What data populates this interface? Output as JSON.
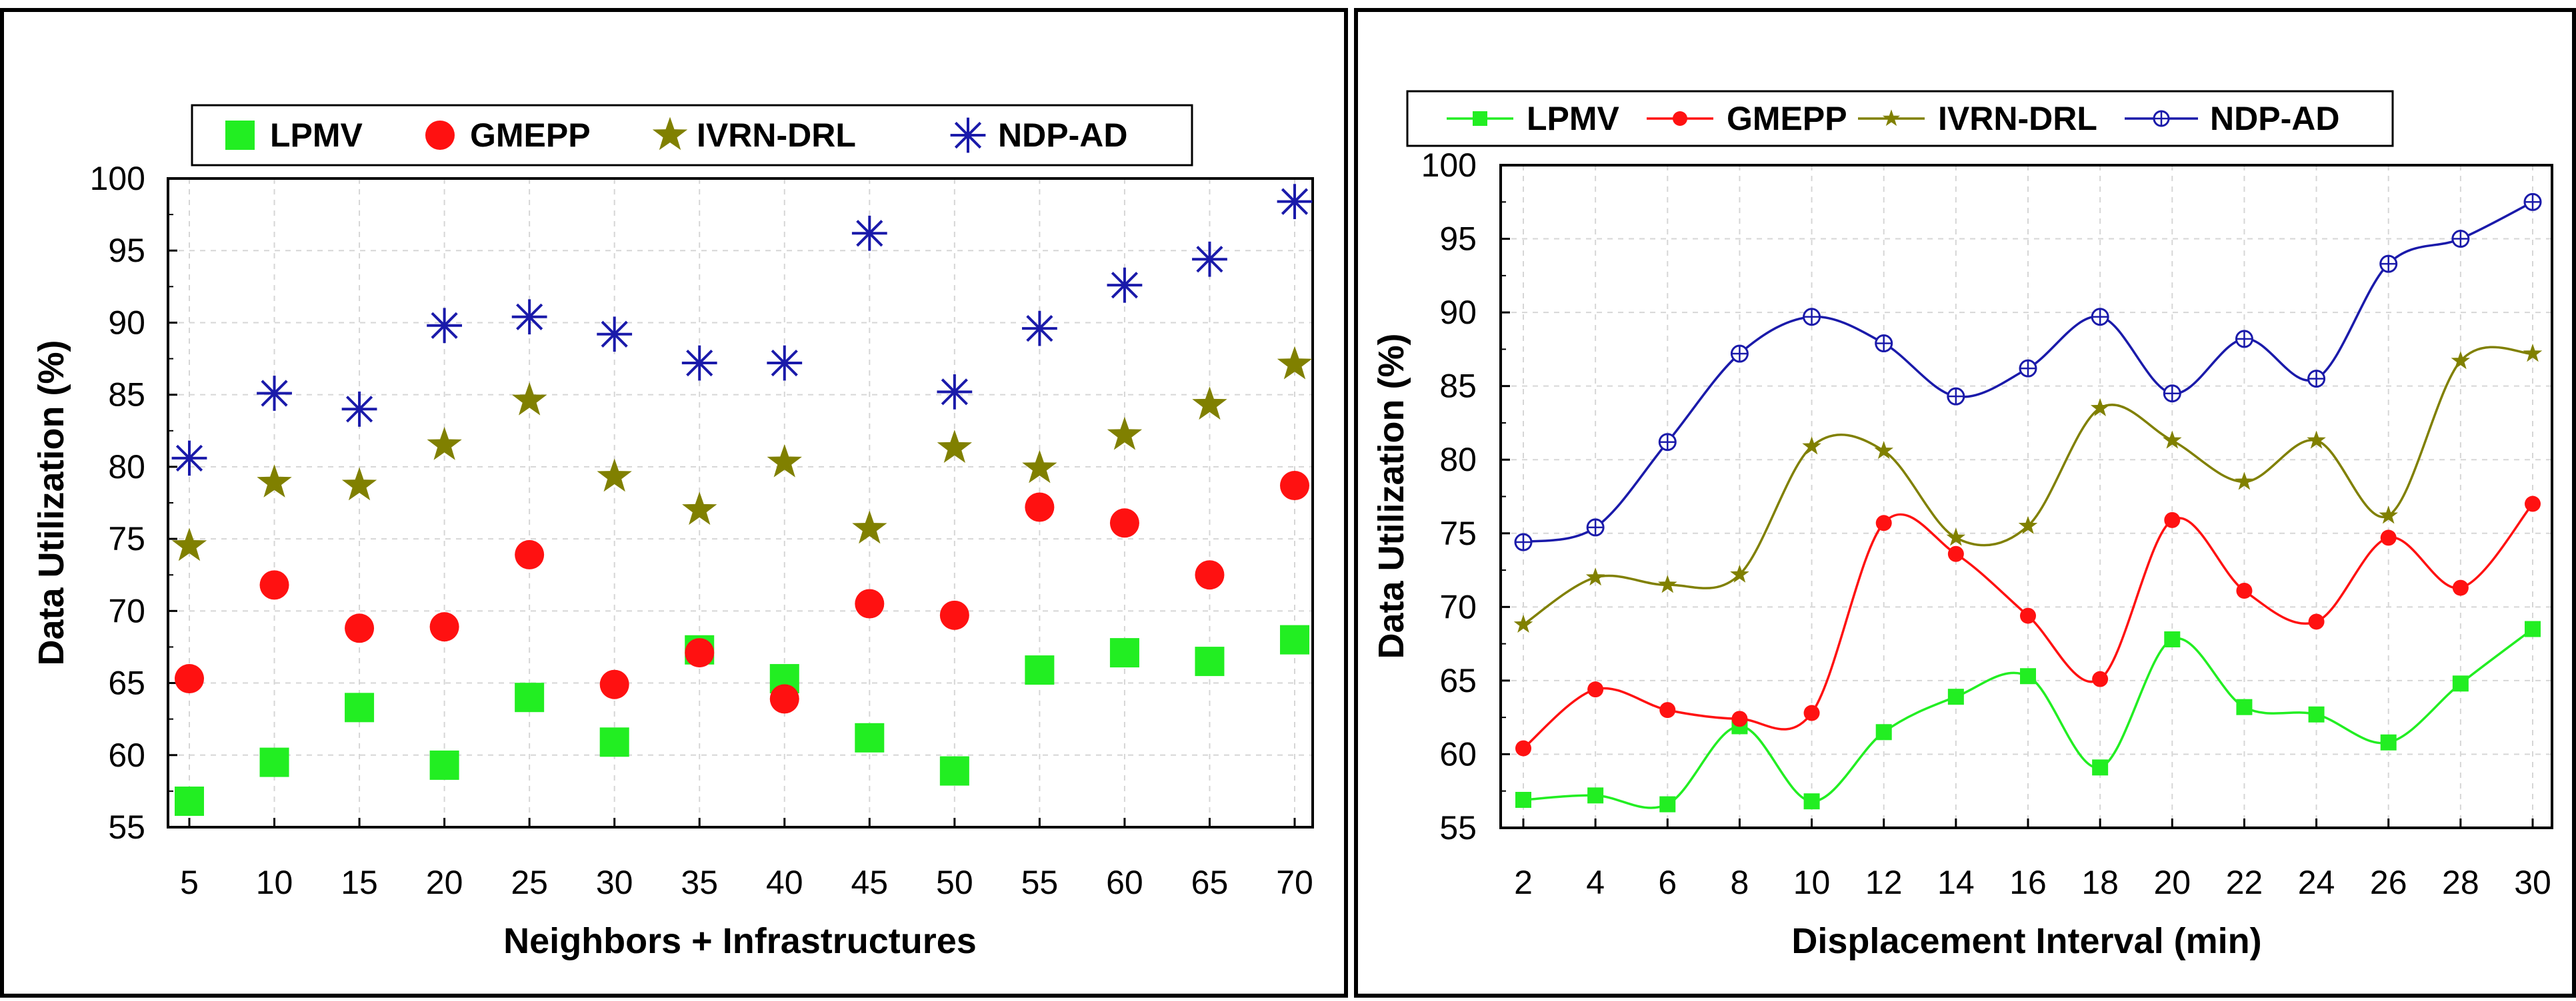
{
  "colors": {
    "LPMV": "#22ee22",
    "GMEPP": "#ff1111",
    "IVRN-DRL": "#808000",
    "NDP-AD": "#1a1aaa"
  },
  "chart_data": [
    {
      "type": "scatter",
      "xlabel": "Neighbors + Infrastructures",
      "ylabel": "Data Utilization (%)",
      "x": [
        5,
        10,
        15,
        20,
        25,
        30,
        35,
        40,
        45,
        50,
        55,
        60,
        65,
        70
      ],
      "xticks": [
        "5",
        "10",
        "15",
        "20",
        "25",
        "30",
        "35",
        "40",
        "45",
        "50",
        "55",
        "60",
        "65",
        "70"
      ],
      "yticks": [
        "55",
        "60",
        "65",
        "70",
        "75",
        "80",
        "85",
        "90",
        "95",
        "100"
      ],
      "ylim": [
        55,
        100
      ],
      "legend": [
        "LPMV",
        "GMEPP",
        "IVRN-DRL",
        "NDP-AD"
      ],
      "series": [
        {
          "name": "LPMV",
          "marker": "square",
          "values": [
            56.8,
            59.5,
            63.3,
            59.3,
            64.0,
            60.9,
            67.3,
            65.3,
            61.2,
            58.9,
            65.9,
            67.1,
            66.5,
            68.0
          ]
        },
        {
          "name": "GMEPP",
          "marker": "circle",
          "values": [
            65.3,
            71.8,
            68.8,
            68.9,
            73.9,
            64.9,
            67.1,
            63.9,
            70.5,
            69.7,
            77.2,
            76.1,
            72.5,
            78.7
          ]
        },
        {
          "name": "IVRN-DRL",
          "marker": "star",
          "values": [
            74.5,
            78.9,
            78.7,
            81.5,
            84.6,
            79.3,
            77.0,
            80.3,
            75.7,
            81.3,
            79.9,
            82.2,
            84.3,
            87.1
          ]
        },
        {
          "name": "NDP-AD",
          "marker": "asterisk",
          "values": [
            80.6,
            85.1,
            84.0,
            89.8,
            90.4,
            89.2,
            87.2,
            87.2,
            96.2,
            85.2,
            89.6,
            92.6,
            94.4,
            98.4
          ]
        }
      ]
    },
    {
      "type": "line",
      "xlabel": "Displacement Interval (min)",
      "ylabel": "Data Utilization (%)",
      "x": [
        2,
        4,
        6,
        8,
        10,
        12,
        14,
        16,
        18,
        20,
        22,
        24,
        26,
        28,
        30
      ],
      "xticks": [
        "2",
        "4",
        "6",
        "8",
        "10",
        "12",
        "14",
        "16",
        "18",
        "20",
        "22",
        "24",
        "26",
        "28",
        "30"
      ],
      "yticks": [
        "55",
        "60",
        "65",
        "70",
        "75",
        "80",
        "85",
        "90",
        "95",
        "100"
      ],
      "ylim": [
        55,
        100
      ],
      "legend": [
        "LPMV",
        "GMEPP",
        "IVRN-DRL",
        "NDP-AD"
      ],
      "series": [
        {
          "name": "LPMV",
          "marker": "square",
          "values": [
            56.9,
            57.2,
            56.6,
            61.9,
            56.8,
            61.5,
            63.9,
            65.3,
            59.1,
            67.8,
            63.2,
            62.7,
            60.8,
            64.8,
            68.5
          ]
        },
        {
          "name": "GMEPP",
          "marker": "circle",
          "values": [
            60.4,
            64.4,
            63.0,
            62.4,
            62.8,
            75.7,
            73.6,
            69.4,
            65.1,
            75.9,
            71.1,
            69.0,
            74.7,
            71.3,
            77.0
          ]
        },
        {
          "name": "IVRN-DRL",
          "marker": "star",
          "values": [
            68.8,
            72.0,
            71.5,
            72.2,
            80.9,
            80.6,
            74.7,
            75.5,
            83.5,
            81.3,
            78.5,
            81.3,
            76.2,
            86.7,
            87.2
          ]
        },
        {
          "name": "NDP-AD",
          "marker": "circle-cross",
          "values": [
            74.4,
            75.4,
            81.2,
            87.2,
            89.7,
            87.9,
            84.3,
            86.2,
            89.7,
            84.5,
            88.2,
            85.5,
            93.3,
            95.0,
            97.5
          ]
        }
      ]
    }
  ]
}
